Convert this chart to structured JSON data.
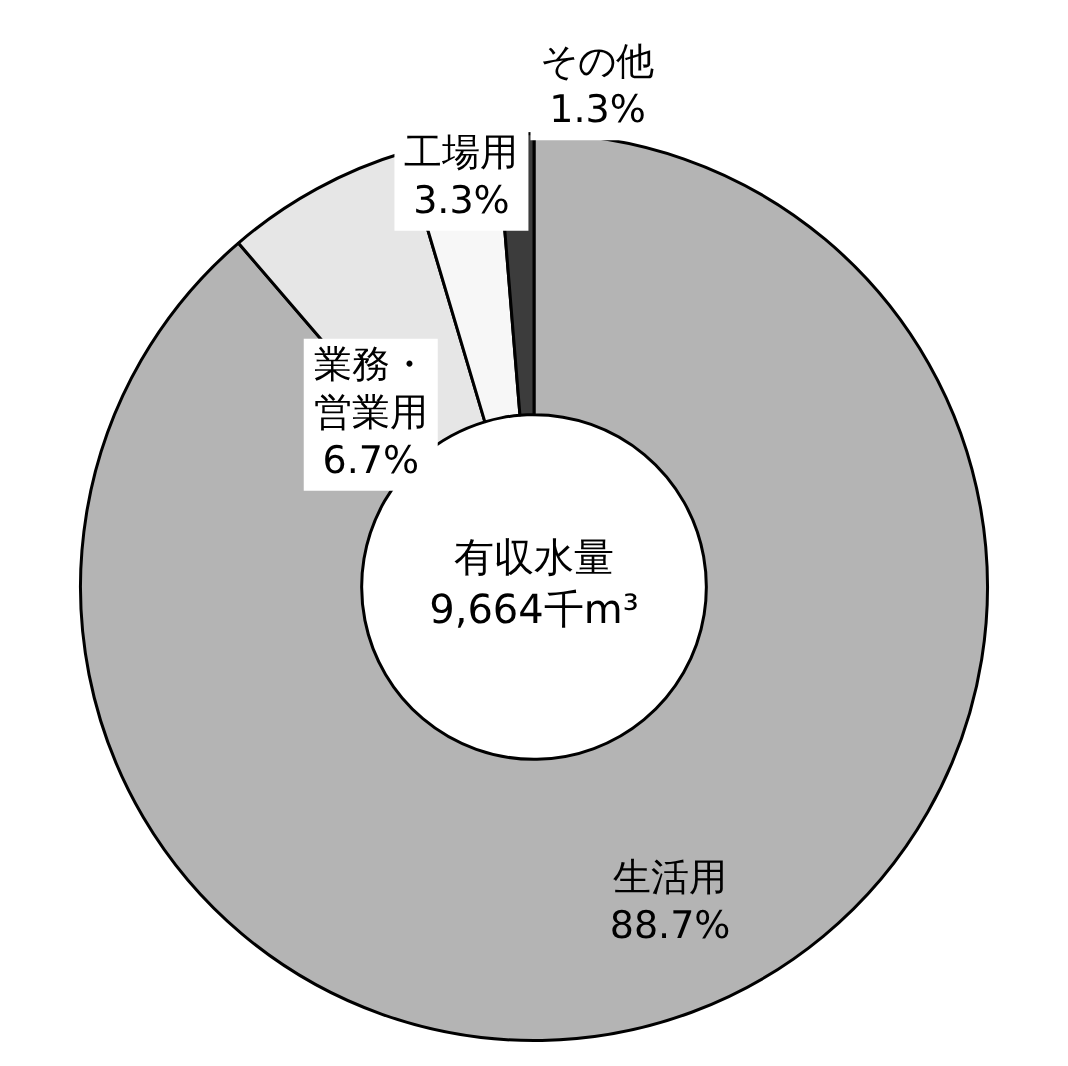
{
  "chart_data": {
    "type": "donut",
    "categories": [
      "生活用",
      "業務・営業用",
      "工場用",
      "その他"
    ],
    "values": [
      88.7,
      6.7,
      3.3,
      1.3
    ],
    "colors": [
      "#b4b4b4",
      "#e6e6e6",
      "#f7f7f7",
      "#3c3c3c"
    ],
    "value_labels": [
      "88.7%",
      "6.7%",
      "3.3%",
      "1.3%"
    ],
    "annotations": [
      "有収水量",
      "9,664千m³"
    ],
    "legend": false
  }
}
